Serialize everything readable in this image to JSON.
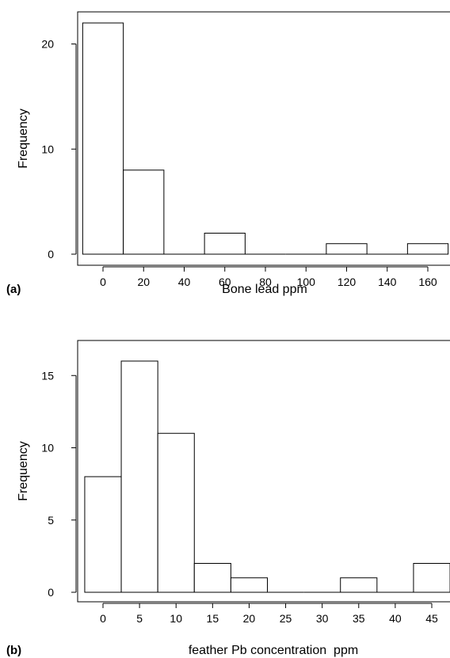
{
  "chart_data": [
    {
      "type": "bar",
      "panel_label": "(a)",
      "xlabel": "Bone lead ppm",
      "ylabel": "Frequency",
      "bin_width": 20,
      "bin_centers": [
        0,
        20,
        40,
        60,
        80,
        100,
        120,
        140,
        160
      ],
      "values": [
        22,
        8,
        0,
        2,
        0,
        0,
        1,
        0,
        1
      ],
      "xticks": [
        0,
        20,
        40,
        60,
        80,
        100,
        120,
        140,
        160
      ],
      "yticks": [
        0,
        10,
        20
      ],
      "ylim": [
        0,
        22
      ],
      "grid": false
    },
    {
      "type": "bar",
      "panel_label": "(b)",
      "xlabel": "feather Pb concentration  ppm",
      "ylabel": "Frequency",
      "bin_width": 5,
      "bin_centers": [
        0,
        5,
        10,
        15,
        20,
        25,
        30,
        35,
        40,
        45
      ],
      "values": [
        8,
        16,
        11,
        2,
        1,
        0,
        0,
        1,
        0,
        2
      ],
      "xticks": [
        0,
        5,
        10,
        15,
        20,
        25,
        30,
        35,
        40,
        45
      ],
      "yticks": [
        0,
        5,
        10,
        15
      ],
      "ylim": [
        0,
        16
      ],
      "grid": false
    }
  ]
}
